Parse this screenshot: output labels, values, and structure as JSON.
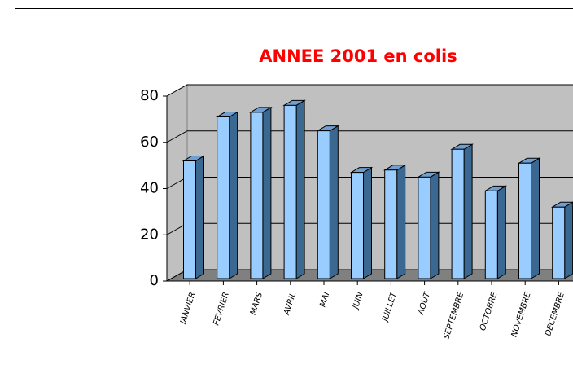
{
  "chart_data": {
    "type": "bar3d",
    "title": "ANNEE 2001 en colis",
    "categories": [
      "JANVIER",
      "FEVRIER",
      "MARS",
      "AVRIL",
      "MAI",
      "JUIN",
      "JUILLET",
      "AOUT",
      "SEPTEMBRE",
      "OCTOBRE",
      "NOVEMBRE",
      "DECEMBRE"
    ],
    "values": [
      52,
      71,
      73,
      76,
      65,
      47,
      48,
      45,
      57,
      39,
      51,
      32
    ],
    "color": "#99ccff",
    "ylim": [
      0,
      80
    ],
    "yticks": [
      0,
      20,
      40,
      60,
      80
    ],
    "grid": true
  }
}
